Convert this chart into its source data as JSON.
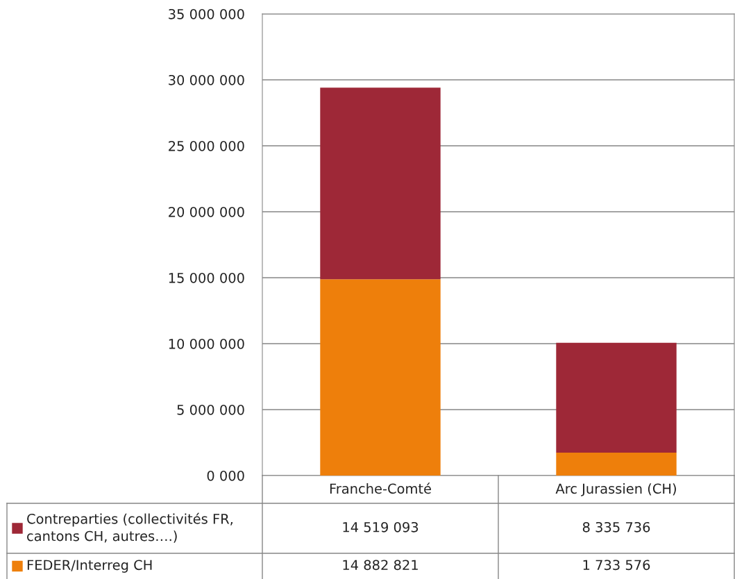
{
  "chart_data": {
    "type": "bar",
    "stacked": true,
    "categories": [
      "Franche-Comté",
      "Arc Jurassien (CH)"
    ],
    "series": [
      {
        "name": "FEDER/Interreg CH",
        "color": "#ee7f0b",
        "values": [
          14882821,
          1733576
        ]
      },
      {
        "name": "Contreparties (collectivités FR,\ncantons CH, autres….)",
        "color": "#9e2837",
        "values": [
          14519093,
          8335736
        ]
      }
    ],
    "ylim": [
      0,
      35000000
    ],
    "yticks": [
      {
        "value": 0,
        "label": "0 000"
      },
      {
        "value": 5000000,
        "label": "5 000 000"
      },
      {
        "value": 10000000,
        "label": "10 000 000"
      },
      {
        "value": 15000000,
        "label": "15 000 000"
      },
      {
        "value": 20000000,
        "label": "20 000 000"
      },
      {
        "value": 25000000,
        "label": "25 000 000"
      },
      {
        "value": 30000000,
        "label": "30 000 000"
      },
      {
        "value": 35000000,
        "label": "35 000 000"
      }
    ],
    "grid": "y",
    "legend": "bottom left",
    "data_labels": true
  }
}
